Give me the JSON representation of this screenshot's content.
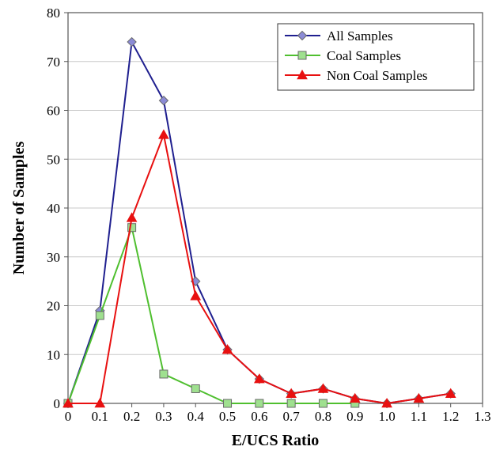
{
  "chart_data": {
    "type": "line",
    "xlabel": "E/UCS Ratio",
    "ylabel": "Number of Samples",
    "xlim": [
      0,
      1.3
    ],
    "ylim": [
      0,
      80
    ],
    "x_ticks": [
      "0",
      "0.1",
      "0.2",
      "0.3",
      "0.4",
      "0.5",
      "0.6",
      "0.7",
      "0.8",
      "0.9",
      "1.0",
      "1.1",
      "1.2",
      "1.3"
    ],
    "y_ticks": [
      "0",
      "10",
      "20",
      "30",
      "40",
      "50",
      "60",
      "70",
      "80"
    ],
    "grid": "horizontal",
    "legend_position": "top-right",
    "series": [
      {
        "name": "All Samples",
        "color": "#1f1f8f",
        "marker": "diamond",
        "marker_color": "#8b8bd6",
        "x": [
          0,
          0.1,
          0.2,
          0.3,
          0.4,
          0.5,
          0.6,
          0.7,
          0.8,
          0.9,
          1.0,
          1.1,
          1.2
        ],
        "values": [
          0,
          19,
          74,
          62,
          25,
          11,
          5,
          2,
          3,
          1,
          0,
          1,
          2
        ]
      },
      {
        "name": "Coal Samples",
        "color": "#4fbf2f",
        "marker": "square",
        "marker_color": "#9fe08f",
        "x": [
          0,
          0.1,
          0.2,
          0.3,
          0.4,
          0.5,
          0.6,
          0.7,
          0.8,
          0.9
        ],
        "values": [
          0,
          18,
          36,
          6,
          3,
          0,
          0,
          0,
          0,
          0
        ]
      },
      {
        "name": "Non Coal Samples",
        "color": "#e81010",
        "marker": "triangle",
        "marker_color": "#e81010",
        "x": [
          0,
          0.1,
          0.2,
          0.3,
          0.4,
          0.5,
          0.6,
          0.7,
          0.8,
          0.9,
          1.0,
          1.1,
          1.2
        ],
        "values": [
          0,
          0,
          38,
          55,
          22,
          11,
          5,
          2,
          3,
          1,
          0,
          1,
          2
        ]
      }
    ]
  }
}
